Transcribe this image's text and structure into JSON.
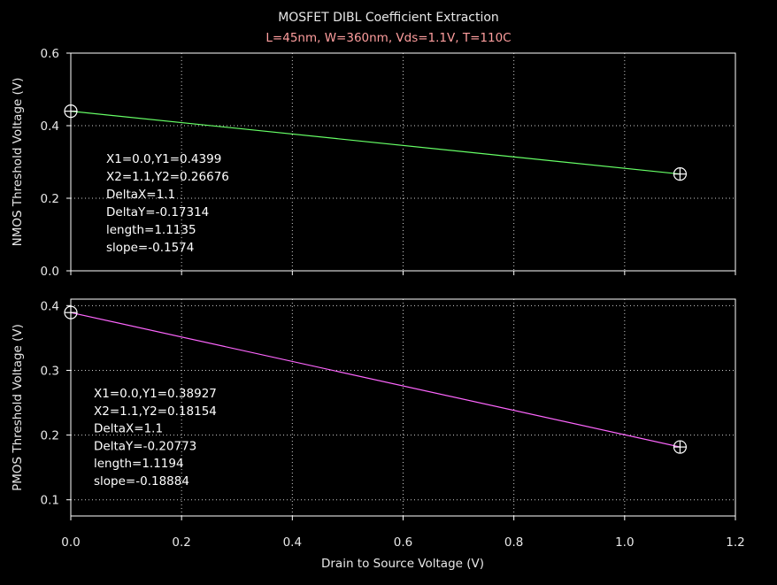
{
  "title": "MOSFET DIBL Coefficient Extraction",
  "subtitle": "L=45nm, W=360nm, Vds=1.1V, T=110C",
  "xlabel": "Drain to Source Voltage (V)",
  "colors": {
    "background": "#000000",
    "subtitle": "#ff9e9e",
    "nmos_line": "#66ff66",
    "pmos_line": "#ff66ff"
  },
  "chart_data": [
    {
      "type": "line",
      "title": "MOSFET DIBL Coefficient Extraction",
      "subtitle": "L=45nm, W=360nm, Vds=1.1V, T=110C",
      "xlabel": "",
      "ylabel": "NMOS Threshold Voltage (V)",
      "xlim": [
        0,
        1.2
      ],
      "ylim": [
        0,
        0.6
      ],
      "x_ticks": [
        "0.0",
        "0.2",
        "0.4",
        "0.6",
        "0.8",
        "1.0",
        "1.2"
      ],
      "y_ticks": [
        "0.0",
        "0.2",
        "0.4",
        "0.6"
      ],
      "grid": true,
      "series": [
        {
          "color": "#66ff66",
          "x": [
            0.0,
            1.1
          ],
          "y": [
            0.4399,
            0.26676
          ]
        }
      ],
      "annotation_lines": [
        "X1=0.0,Y1=0.4399",
        "X2=1.1,Y2=0.26676",
        "DeltaX=1.1",
        "DeltaY=-0.17314",
        "length=1.1135",
        "slope=-0.1574"
      ]
    },
    {
      "type": "line",
      "xlabel": "Drain to Source Voltage (V)",
      "ylabel": "PMOS Threshold Voltage (V)",
      "xlim": [
        0,
        1.2
      ],
      "ylim": [
        0.075,
        0.41
      ],
      "x_ticks": [
        "0.0",
        "0.2",
        "0.4",
        "0.6",
        "0.8",
        "1.0",
        "1.2"
      ],
      "y_ticks": [
        "0.1",
        "0.2",
        "0.3",
        "0.4"
      ],
      "grid": true,
      "series": [
        {
          "color": "#ff66ff",
          "x": [
            0.0,
            1.1
          ],
          "y": [
            0.38927,
            0.18154
          ]
        }
      ],
      "annotation_lines": [
        "X1=0.0,Y1=0.38927",
        "X2=1.1,Y2=0.18154",
        "DeltaX=1.1",
        "DeltaY=-0.20773",
        "length=1.1194",
        "slope=-0.18884"
      ]
    }
  ]
}
